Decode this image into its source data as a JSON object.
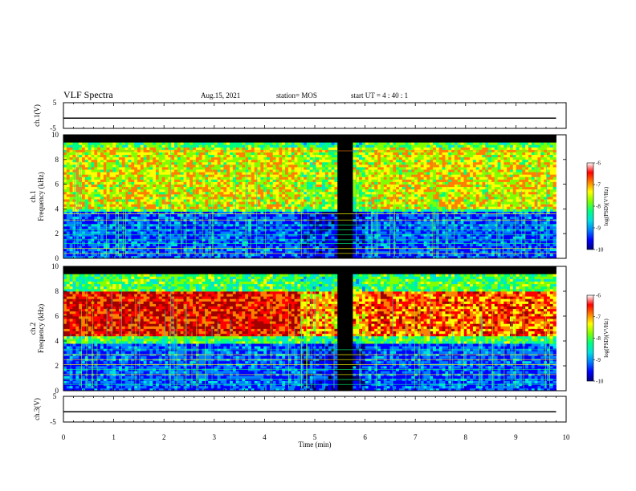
{
  "header": {
    "title": "VLF Spectra",
    "date": "Aug.15, 2021",
    "station": "station= MOS",
    "start": "start  UT =   4 : 40 : 1"
  },
  "colors": {
    "spectrogram_scale": [
      "#000000",
      "#00007f",
      "#0000ff",
      "#0080ff",
      "#00e0e0",
      "#00ff80",
      "#80ff00",
      "#ffff00",
      "#ff8000",
      "#ff0000",
      "#a00000"
    ],
    "trace": "#000000"
  },
  "chart_data": [
    {
      "type": "line",
      "title": "",
      "ylabel": "ch.1(V)",
      "ytick_labels": [
        "5",
        "-5"
      ],
      "ylim": [
        -5,
        5
      ],
      "xlim": [
        0,
        10
      ],
      "series": [
        {
          "values": [
            [
              0,
              -1
            ],
            [
              9.8,
              -1
            ]
          ]
        }
      ]
    },
    {
      "type": "heatmap",
      "ylabel_line1": "ch.1",
      "ylabel_line2": "Frequency (kHz)",
      "ylim": [
        0,
        10
      ],
      "yticks": [
        "0",
        "2",
        "4",
        "6",
        "8",
        "10"
      ],
      "xlim": [
        0,
        10
      ],
      "data_end_min": 9.8,
      "colorbar": {
        "label": "log(PSD)(V²/Hz)",
        "ticks": [
          "-6",
          "-7",
          "-8",
          "-9",
          "-10"
        ],
        "range": [
          -10,
          -6
        ]
      },
      "quiet_interval_min": [
        5.5,
        5.65
      ],
      "dominant_band_khz": [
        4,
        9
      ],
      "noise_lines_khz": [
        0.4,
        0.8,
        1.2,
        1.5,
        1.9,
        2.3,
        2.7,
        3.1,
        3.6,
        8.7
      ]
    },
    {
      "type": "heatmap",
      "ylabel_line1": "ch.2",
      "ylabel_line2": "Frequency (kHz)",
      "ylim": [
        0,
        10
      ],
      "yticks": [
        "0",
        "2",
        "4",
        "6",
        "8",
        "10"
      ],
      "xlim": [
        0,
        10
      ],
      "data_end_min": 9.8,
      "colorbar": {
        "label": "log(PSD)(V²/Hz)",
        "ticks": [
          "-6",
          "-7",
          "-8",
          "-9",
          "-10"
        ],
        "range": [
          -10,
          -6
        ]
      },
      "quiet_interval_min": [
        5.5,
        5.65
      ],
      "dominant_band_khz": [
        4.5,
        8
      ],
      "noise_lines_khz": [
        0.5,
        0.9,
        1.3,
        1.7,
        2.1,
        2.5,
        2.9,
        3.3
      ]
    },
    {
      "type": "line",
      "title": "",
      "ylabel": "ch.3(V)",
      "ytick_labels": [
        "5",
        "-5"
      ],
      "ylim": [
        -5,
        5
      ],
      "xlim": [
        0,
        10
      ],
      "xlabel": "Time  (min)",
      "xticks": [
        "0",
        "1",
        "2",
        "3",
        "4",
        "5",
        "6",
        "7",
        "8",
        "9",
        "10"
      ],
      "series": [
        {
          "values": [
            [
              0,
              -1
            ],
            [
              9.8,
              -1
            ]
          ]
        }
      ]
    }
  ]
}
